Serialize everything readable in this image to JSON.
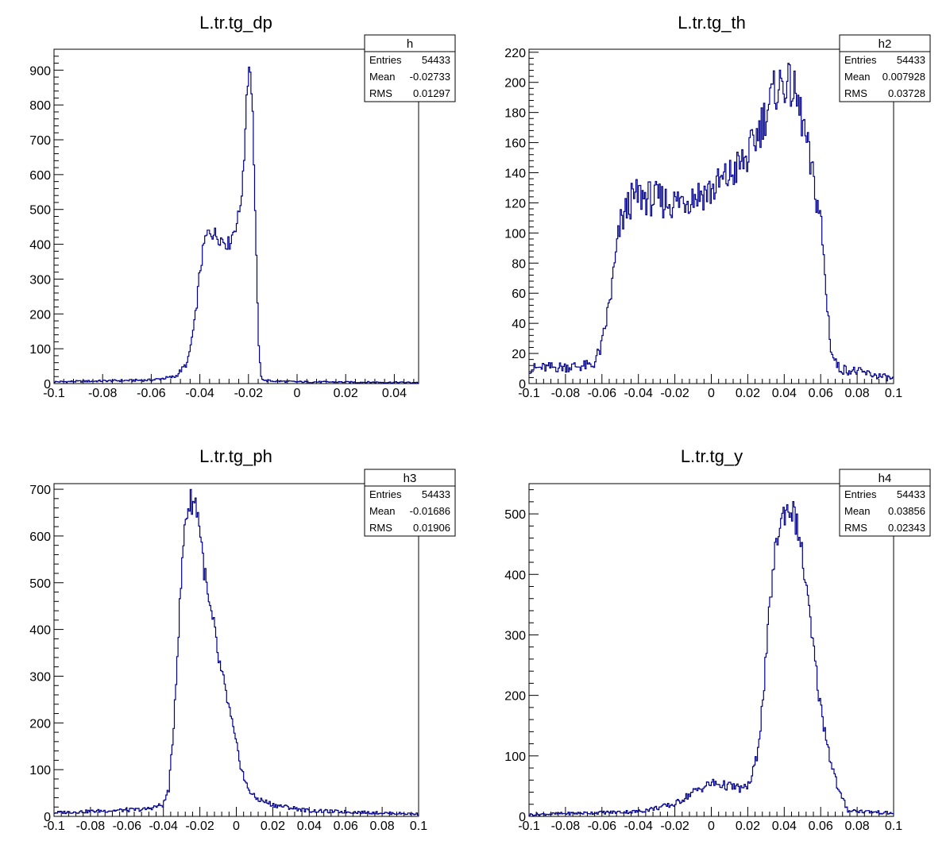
{
  "colors": {
    "line": "#00008b",
    "axis": "#000000",
    "background": "#ffffff"
  },
  "chart_data": [
    {
      "type": "histogram",
      "title": "L.tr.tg_dp",
      "xlim": [
        -0.1,
        0.05
      ],
      "ylim": [
        0,
        960
      ],
      "xticks": [
        -0.1,
        -0.08,
        -0.06,
        -0.04,
        -0.02,
        0,
        0.02,
        0.04
      ],
      "yticks": [
        0,
        100,
        200,
        300,
        400,
        500,
        600,
        700,
        800,
        900
      ],
      "stats": {
        "name": "h",
        "rows": [
          [
            "Entries",
            "54433"
          ],
          [
            "Mean",
            "-0.02733"
          ],
          [
            "RMS",
            "0.01297"
          ]
        ]
      },
      "series": [
        {
          "x": [
            -0.1,
            -0.06,
            -0.05,
            -0.045,
            -0.042,
            -0.04,
            -0.038,
            -0.036,
            -0.034,
            -0.032,
            -0.03,
            -0.028,
            -0.026,
            -0.024,
            -0.022,
            -0.021,
            -0.02,
            -0.019,
            -0.018,
            -0.017,
            -0.016,
            -0.015,
            -0.013,
            0.0,
            0.05
          ],
          "y": [
            5,
            10,
            20,
            60,
            180,
            320,
            410,
            440,
            430,
            420,
            410,
            400,
            440,
            480,
            600,
            800,
            910,
            900,
            720,
            420,
            150,
            20,
            8,
            5,
            3
          ]
        }
      ]
    },
    {
      "type": "histogram",
      "title": "L.tr.tg_th",
      "xlim": [
        -0.1,
        0.1
      ],
      "ylim": [
        0,
        222
      ],
      "xticks": [
        -0.1,
        -0.08,
        -0.06,
        -0.04,
        -0.02,
        0,
        0.02,
        0.04,
        0.06,
        0.08,
        0.1
      ],
      "yticks": [
        0,
        20,
        40,
        60,
        80,
        100,
        120,
        140,
        160,
        180,
        200,
        220
      ],
      "stats": {
        "name": "h2",
        "rows": [
          [
            "Entries",
            "54433"
          ],
          [
            "Mean",
            "0.007928"
          ],
          [
            "RMS",
            "0.03728"
          ]
        ]
      },
      "series": [
        {
          "x": [
            -0.1,
            -0.065,
            -0.06,
            -0.055,
            -0.05,
            -0.045,
            -0.04,
            -0.03,
            -0.02,
            -0.01,
            0.0,
            0.01,
            0.02,
            0.025,
            0.03,
            0.035,
            0.04,
            0.045,
            0.05,
            0.055,
            0.06,
            0.063,
            0.066,
            0.07,
            0.08,
            0.1
          ],
          "y": [
            10,
            12,
            25,
            60,
            105,
            120,
            125,
            122,
            120,
            125,
            128,
            138,
            150,
            165,
            180,
            195,
            200,
            195,
            175,
            140,
            110,
            60,
            20,
            10,
            8,
            3
          ]
        }
      ]
    },
    {
      "type": "histogram",
      "title": "L.tr.tg_ph",
      "xlim": [
        -0.1,
        0.1
      ],
      "ylim": [
        0,
        712
      ],
      "xticks": [
        -0.1,
        -0.08,
        -0.06,
        -0.04,
        -0.02,
        0,
        0.02,
        0.04,
        0.06,
        0.08,
        0.1
      ],
      "yticks": [
        0,
        100,
        200,
        300,
        400,
        500,
        600,
        700
      ],
      "stats": {
        "name": "h3",
        "rows": [
          [
            "Entries",
            "54433"
          ],
          [
            "Mean",
            "-0.01686"
          ],
          [
            "RMS",
            "0.01906"
          ]
        ]
      },
      "series": [
        {
          "x": [
            -0.1,
            -0.05,
            -0.04,
            -0.037,
            -0.035,
            -0.033,
            -0.03,
            -0.028,
            -0.025,
            -0.022,
            -0.02,
            -0.018,
            -0.015,
            -0.012,
            -0.01,
            -0.005,
            0.0,
            0.005,
            0.01,
            0.02,
            0.04,
            0.1
          ],
          "y": [
            8,
            15,
            25,
            60,
            150,
            300,
            520,
            640,
            675,
            670,
            620,
            540,
            450,
            400,
            340,
            250,
            150,
            70,
            40,
            25,
            12,
            5
          ]
        }
      ]
    },
    {
      "type": "histogram",
      "title": "L.tr.tg_y",
      "xlim": [
        -0.1,
        0.1
      ],
      "ylim": [
        0,
        550
      ],
      "xticks": [
        -0.1,
        -0.08,
        -0.06,
        -0.04,
        -0.02,
        0,
        0.02,
        0.04,
        0.06,
        0.08,
        0.1
      ],
      "yticks": [
        0,
        100,
        200,
        300,
        400,
        500
      ],
      "stats": {
        "name": "h4",
        "rows": [
          [
            "Entries",
            "54433"
          ],
          [
            "Mean",
            "0.03856"
          ],
          [
            "RMS",
            "0.02343"
          ]
        ]
      },
      "series": [
        {
          "x": [
            -0.1,
            -0.04,
            -0.02,
            -0.01,
            0.0,
            0.01,
            0.018,
            0.022,
            0.025,
            0.028,
            0.03,
            0.033,
            0.036,
            0.04,
            0.044,
            0.048,
            0.052,
            0.055,
            0.06,
            0.065,
            0.07,
            0.075,
            0.1
          ],
          "y": [
            3,
            8,
            20,
            40,
            55,
            50,
            45,
            60,
            100,
            180,
            260,
            380,
            460,
            505,
            510,
            470,
            380,
            300,
            180,
            100,
            40,
            10,
            5
          ]
        }
      ]
    }
  ]
}
